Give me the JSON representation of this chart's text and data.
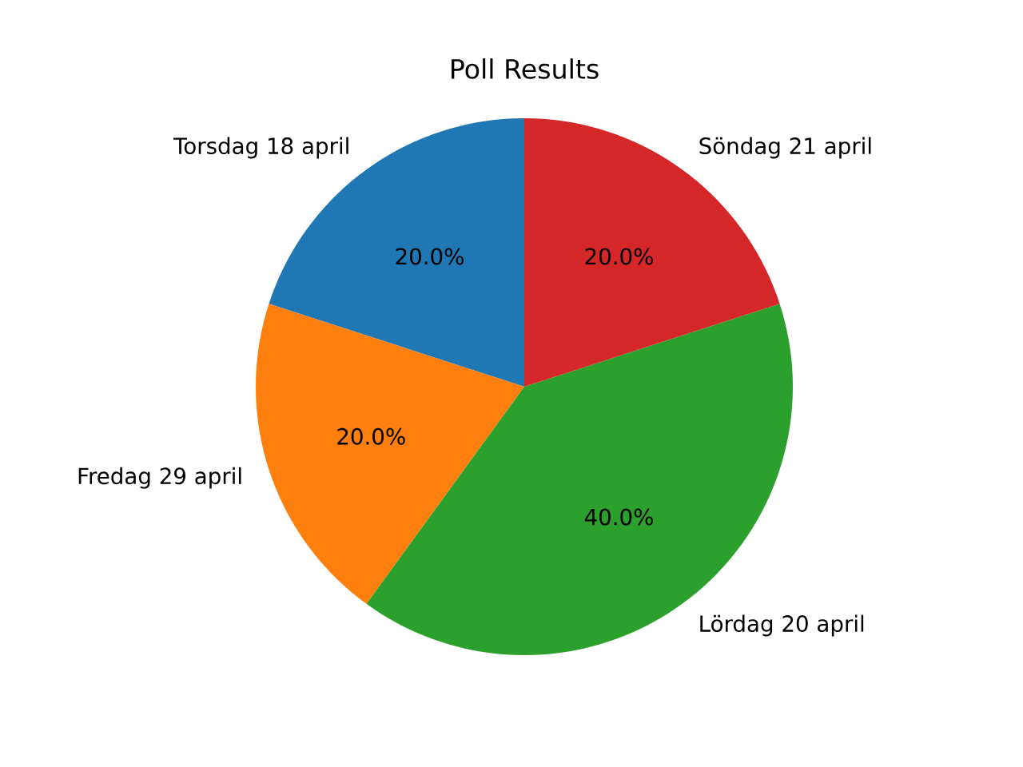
{
  "chart_data": {
    "type": "pie",
    "title": "Poll Results",
    "categories": [
      "Torsdag 18 april",
      "Fredag 29 april",
      "Lördag 20 april",
      "Söndag 21 april"
    ],
    "values": [
      20,
      20,
      40,
      20
    ],
    "value_labels": [
      "20.0%",
      "20.0%",
      "40.0%",
      "20.0%"
    ],
    "colors": [
      "#1f77b4",
      "#ff7f0e",
      "#2ca02c",
      "#d62728"
    ]
  }
}
